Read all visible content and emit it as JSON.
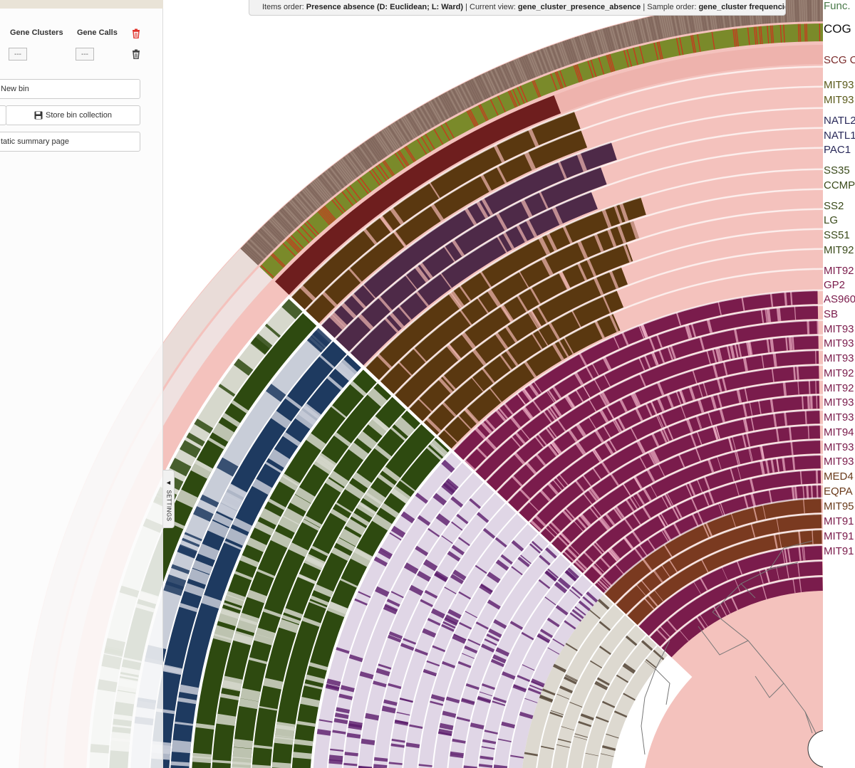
{
  "panel": {
    "col_gene_clusters": "Gene Clusters",
    "col_gene_calls": "Gene Calls",
    "gene_clusters_value": "---",
    "gene_calls_value": "---",
    "new_bin_label": "New bin",
    "store_bin_label": "Store bin collection",
    "static_summary_label": "tatic summary page",
    "settings_label": "SETTINGS",
    "settings_arrow": "◄"
  },
  "status": {
    "items_order_label": "Items order:",
    "items_order_value": "Presence absence (D: Euclidean; L: Ward)",
    "current_view_label": "Current view:",
    "current_view_value": "gene_cluster_presence_absence",
    "sample_order_label": "Sample order:",
    "sample_order_value": "gene_cluster frequencies"
  },
  "layer_labels": [
    {
      "text": "Func.",
      "color": "#4a7a4a"
    },
    {
      "text": "COG",
      "color": "#111111"
    },
    {
      "text": "SCG C",
      "color": "#7a2a2a"
    },
    {
      "text": "MIT93",
      "color": "#5a5a1a"
    },
    {
      "text": "MIT93",
      "color": "#5a5a1a"
    },
    {
      "text": "NATL2",
      "color": "#2a2a5a"
    },
    {
      "text": "NATL1",
      "color": "#2a2a5a"
    },
    {
      "text": "PAC1",
      "color": "#2a2a5a"
    },
    {
      "text": "SS35",
      "color": "#3a4a1a"
    },
    {
      "text": "CCMP",
      "color": "#3a4a1a"
    },
    {
      "text": "SS2",
      "color": "#3a4a1a"
    },
    {
      "text": "LG",
      "color": "#3a4a1a"
    },
    {
      "text": "SS51",
      "color": "#3a4a1a"
    },
    {
      "text": "MIT92",
      "color": "#3a4a1a"
    },
    {
      "text": "MIT92",
      "color": "#7a1a4a"
    },
    {
      "text": "GP2",
      "color": "#7a1a4a"
    },
    {
      "text": "AS960",
      "color": "#7a1a4a"
    },
    {
      "text": "SB",
      "color": "#7a1a4a"
    },
    {
      "text": "MIT93",
      "color": "#7a1a4a"
    },
    {
      "text": "MIT93",
      "color": "#7a1a4a"
    },
    {
      "text": "MIT93",
      "color": "#7a1a4a"
    },
    {
      "text": "MIT92",
      "color": "#7a1a4a"
    },
    {
      "text": "MIT92",
      "color": "#7a1a4a"
    },
    {
      "text": "MIT93",
      "color": "#7a1a4a"
    },
    {
      "text": "MIT93",
      "color": "#7a1a4a"
    },
    {
      "text": "MIT94",
      "color": "#7a1a4a"
    },
    {
      "text": "MIT93",
      "color": "#7a1a4a"
    },
    {
      "text": "MIT93",
      "color": "#7a1a4a"
    },
    {
      "text": "MED4",
      "color": "#6a3a1a"
    },
    {
      "text": "EQPA",
      "color": "#6a3a1a"
    },
    {
      "text": "MIT95",
      "color": "#6a3a1a"
    },
    {
      "text": "MIT91",
      "color": "#7a1a4a"
    },
    {
      "text": "MIT91",
      "color": "#7a1a4a"
    },
    {
      "text": "MIT91",
      "color": "#7a1a4a"
    }
  ],
  "colors": {
    "bg_pink": "#f4c2bd",
    "func": "#8a7065",
    "cog": "#7a8a2a",
    "cog_red": "#c8371e",
    "scg": "#6e1e1e",
    "brown": "#5a3810",
    "purple_dark": "#4e2a48",
    "magenta": "#7a1c4c",
    "rust": "#7a3a20",
    "olive_dark": "#2e4a10",
    "navy": "#1e3a60",
    "lavender": "#e0d6e6",
    "grey_light": "#d6d8cc",
    "tree_line": "#777777"
  }
}
